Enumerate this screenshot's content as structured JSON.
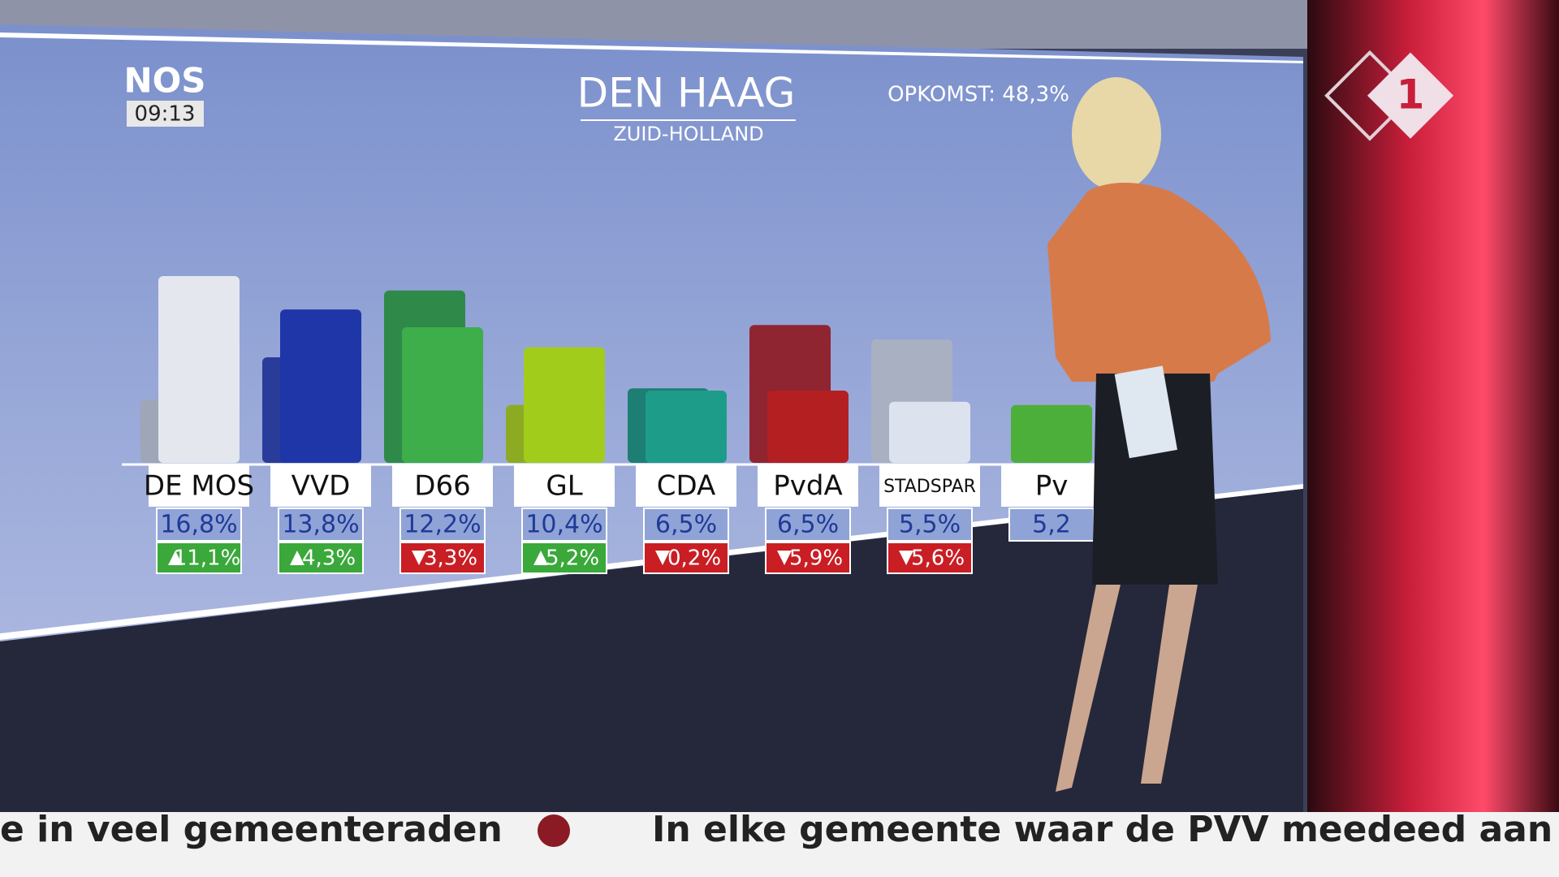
{
  "broadcast": {
    "logo": "NOS",
    "time": "09:13",
    "channel": "1",
    "ticker": [
      "e in veel gemeenteraden",
      "In elke gemeente waar de PVV meedeed aan de v"
    ]
  },
  "chart_data": {
    "type": "bar",
    "title": "DEN HAAG",
    "subtitle": "ZUID-HOLLAND",
    "annotation": "OPKOMST: 48,3%",
    "categories": [
      "DE MOS",
      "VVD",
      "D66",
      "GL",
      "CDA",
      "PvdA",
      "STADSPAR",
      "Pv"
    ],
    "values": [
      16.8,
      13.8,
      12.2,
      10.4,
      6.5,
      6.5,
      5.5,
      5.2
    ],
    "value_labels": [
      "16,8%",
      "13,8%",
      "12,2%",
      "10,4%",
      "6,5%",
      "6,5%",
      "5,5%",
      "5,2"
    ],
    "changes": [
      11.1,
      4.3,
      -3.3,
      5.2,
      -0.2,
      -5.9,
      -5.6,
      null
    ],
    "change_labels": [
      "11,1%",
      "4,3%",
      "3,3%",
      "5,2%",
      "0,2%",
      "5,9%",
      "5,6%",
      null
    ],
    "colors": [
      "#e4e7ee",
      "#1f36a8",
      "#3dae4a",
      "#a2cc1c",
      "#1e9c8a",
      "#b41f22",
      "#dde3ee",
      "#4caf3a"
    ],
    "previous_colors": [
      "#9ea6b8",
      "#2a3c9a",
      "#2f8a4a",
      "#8cab22",
      "#1d7e74",
      "#8e2530",
      "#a9b0c2",
      "#3d8d34"
    ]
  }
}
